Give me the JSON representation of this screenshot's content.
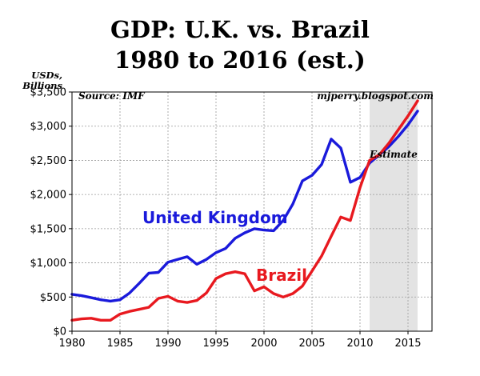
{
  "chart_data": {
    "type": "line",
    "title_line1": "GDP: U.K. vs. Brazil",
    "title_line2": "1980 to 2016 (est.)",
    "ylabel_line1": "USDs,",
    "ylabel_line2": "Billions",
    "source": "Source: IMF",
    "credit": "mjperry.blogspot.com",
    "estimate_label": "Estimate",
    "estimate_range": [
      2011,
      2016
    ],
    "xlim": [
      1980,
      2017.5
    ],
    "ylim": [
      0,
      3500
    ],
    "x_ticks": [
      1980,
      1985,
      1990,
      1995,
      2000,
      2005,
      2010,
      2015
    ],
    "x_tick_labels": [
      "1980",
      "1985",
      "1990",
      "1995",
      "2000",
      "2005",
      "2010",
      "2015"
    ],
    "y_ticks": [
      0,
      500,
      1000,
      1500,
      2000,
      2500,
      3000,
      3500
    ],
    "y_tick_labels": [
      "$0",
      "$500",
      "$1,000",
      "$1,500",
      "$2,000",
      "$2,500",
      "$3,000",
      "$3,500"
    ],
    "grid": true,
    "x": [
      1980,
      1981,
      1982,
      1983,
      1984,
      1985,
      1986,
      1987,
      1988,
      1989,
      1990,
      1991,
      1992,
      1993,
      1994,
      1995,
      1996,
      1997,
      1998,
      1999,
      2000,
      2001,
      2002,
      2003,
      2004,
      2005,
      2006,
      2007,
      2008,
      2009,
      2010,
      2011,
      2012,
      2013,
      2014,
      2015,
      2016
    ],
    "series": [
      {
        "name": "United Kingdom",
        "color": "#1a1adb",
        "values": [
          540,
          520,
          490,
          460,
          440,
          460,
          560,
          700,
          850,
          860,
          1010,
          1050,
          1090,
          980,
          1050,
          1150,
          1210,
          1360,
          1440,
          1500,
          1480,
          1470,
          1620,
          1860,
          2200,
          2280,
          2440,
          2810,
          2680,
          2180,
          2250,
          2460,
          2580,
          2700,
          2850,
          3020,
          3220
        ]
      },
      {
        "name": "Brazil",
        "color": "#e8191f",
        "values": [
          160,
          180,
          190,
          160,
          160,
          250,
          290,
          320,
          350,
          480,
          510,
          440,
          420,
          450,
          560,
          770,
          840,
          870,
          840,
          590,
          650,
          550,
          500,
          550,
          660,
          880,
          1100,
          1390,
          1670,
          1620,
          2100,
          2500,
          2580,
          2750,
          2950,
          3150,
          3370
        ]
      }
    ]
  }
}
